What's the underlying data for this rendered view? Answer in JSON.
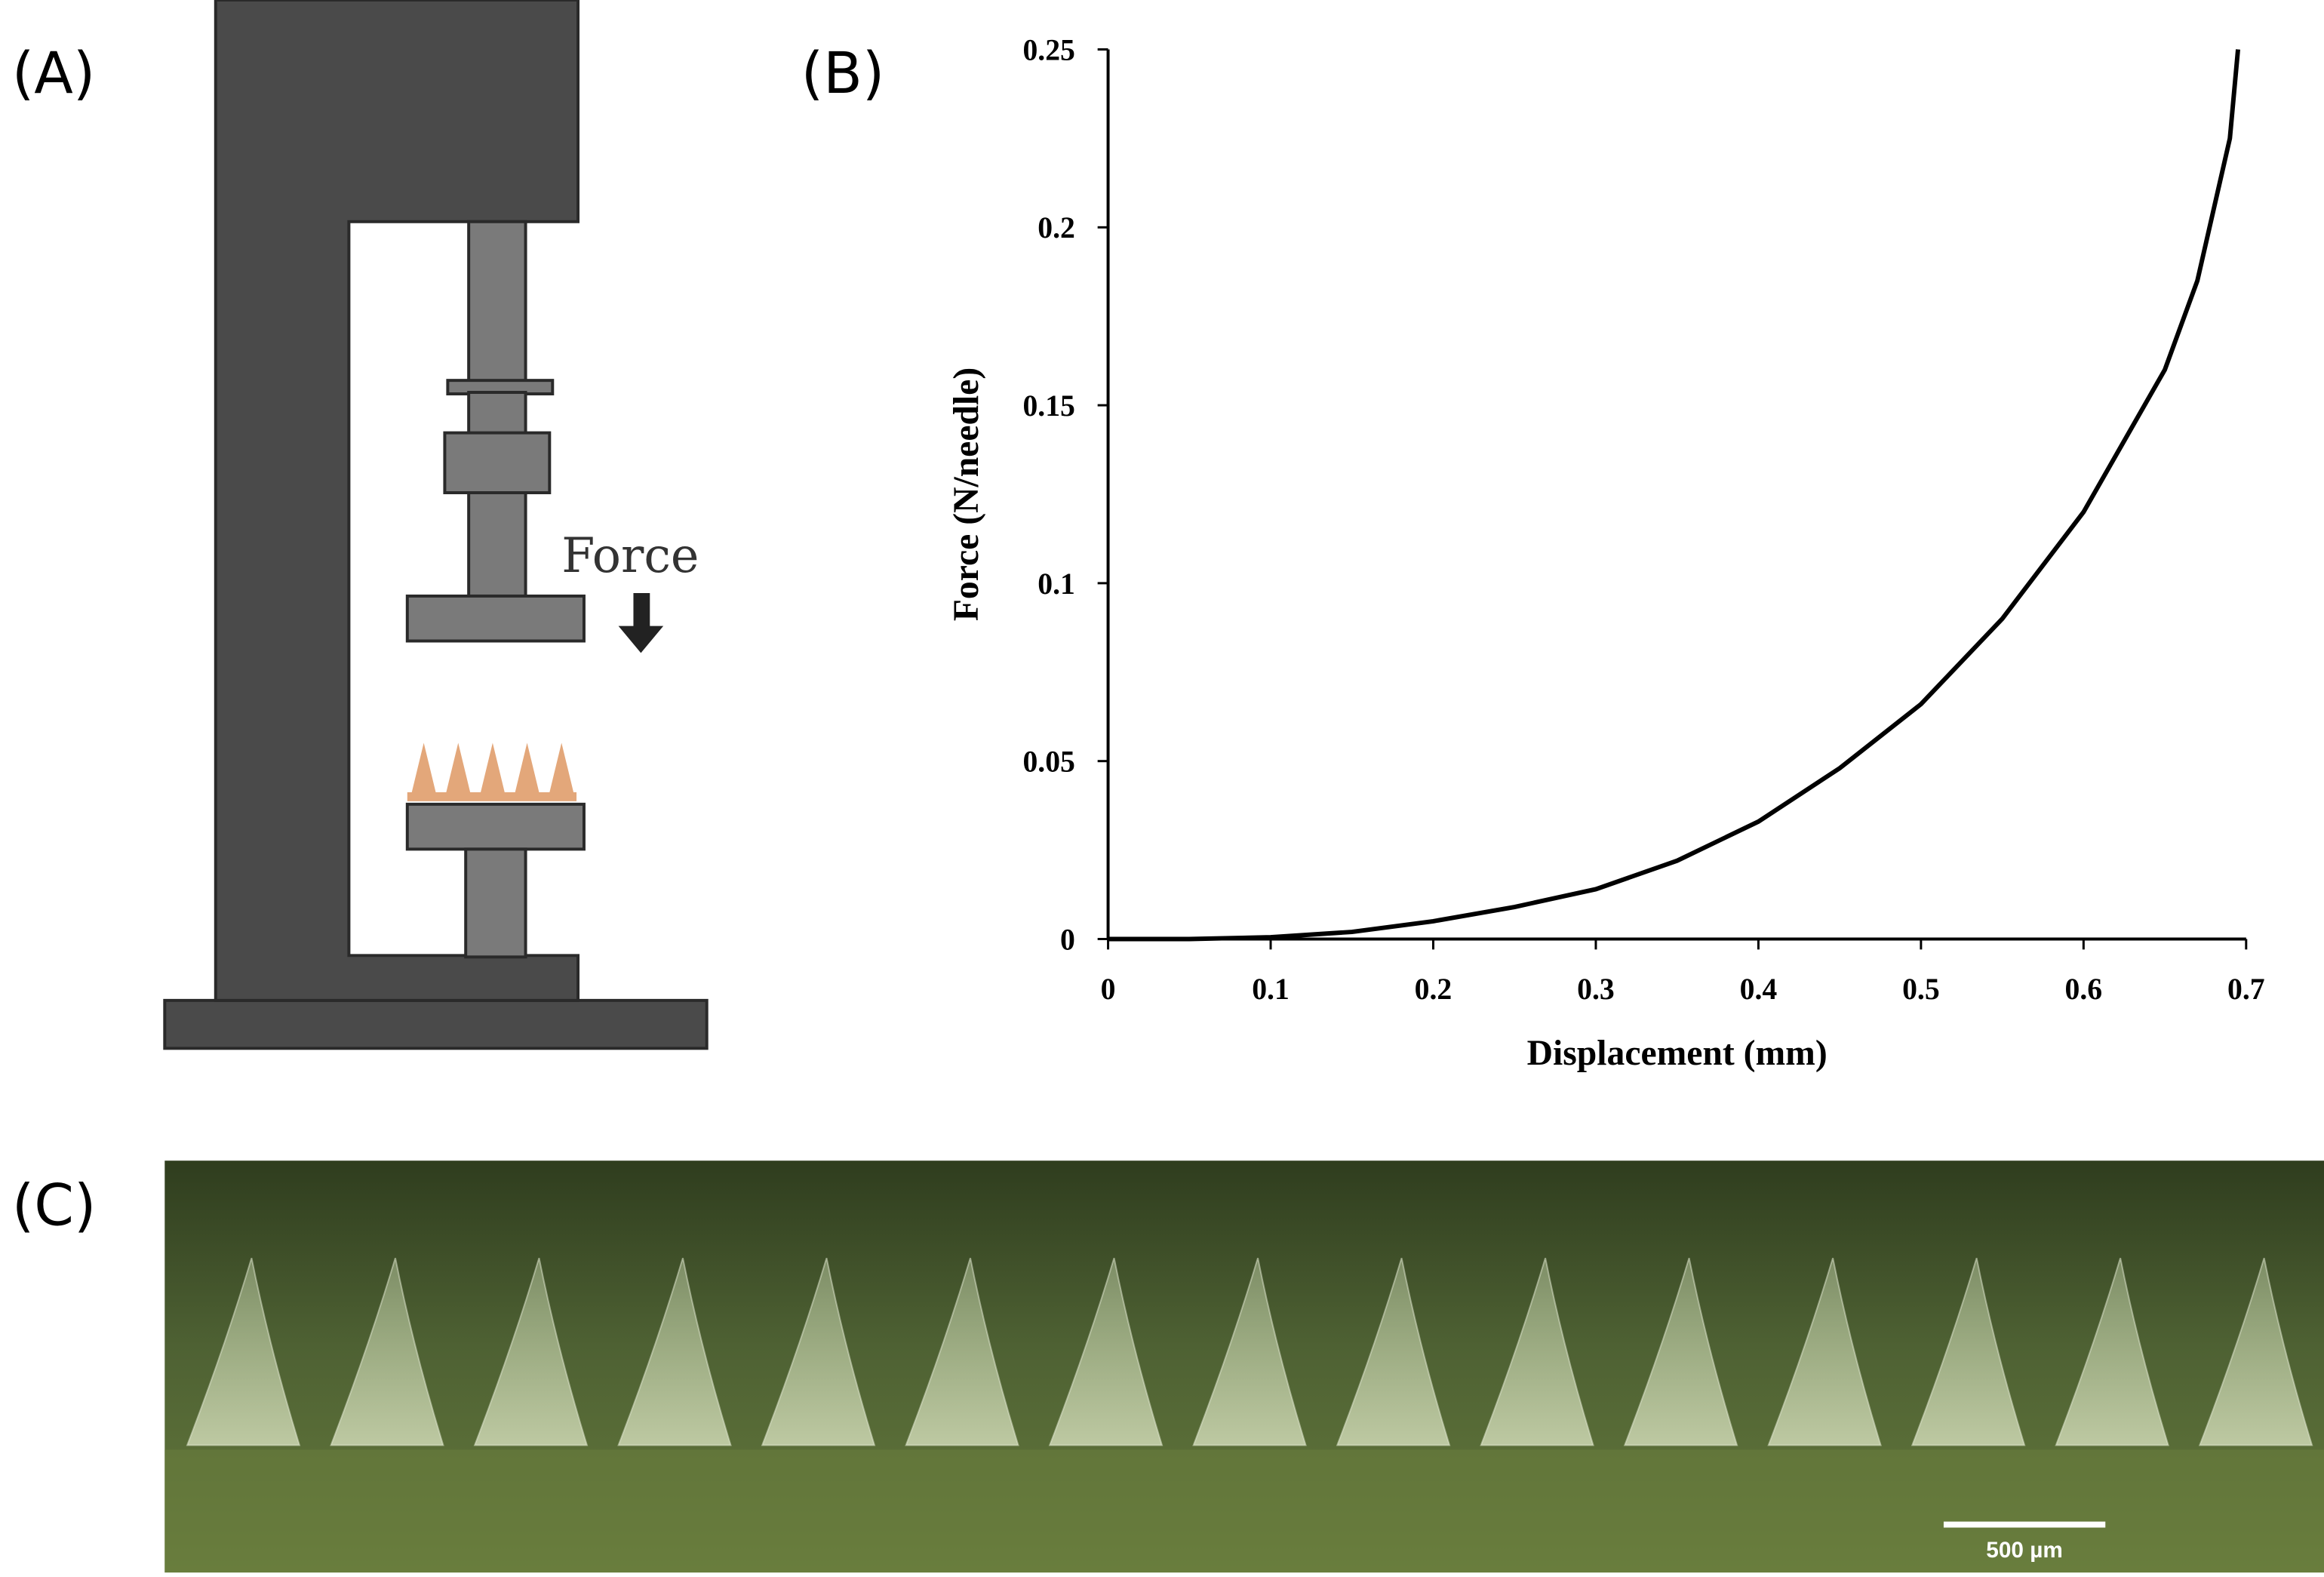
{
  "chart_data": {
    "type": "line",
    "x_label": "Displacement (mm)",
    "y_label": "Force (N/needle)",
    "x": [
      0,
      0.05,
      0.1,
      0.15,
      0.2,
      0.25,
      0.3,
      0.35,
      0.4,
      0.45,
      0.5,
      0.55,
      0.6,
      0.65,
      0.67,
      0.69,
      0.695
    ],
    "values": [
      0,
      0,
      0.0005,
      0.002,
      0.005,
      0.009,
      0.014,
      0.022,
      0.033,
      0.048,
      0.066,
      0.09,
      0.12,
      0.16,
      0.185,
      0.225,
      0.25
    ],
    "color": "#000000",
    "xlim": [
      0,
      0.7
    ],
    "xticks": [
      0,
      0.1,
      0.2,
      0.3,
      0.4,
      0.5,
      0.6,
      0.7
    ],
    "ylim": [
      0,
      0.25
    ],
    "yticks": [
      0,
      0.05,
      0.1,
      0.15,
      0.2,
      0.25
    ]
  },
  "panel_labels": [
    "(A)",
    "(B)",
    "(C)"
  ],
  "diagram": {
    "force_label": "Force"
  },
  "micrograph": {
    "scale_bar": "500 µm"
  }
}
